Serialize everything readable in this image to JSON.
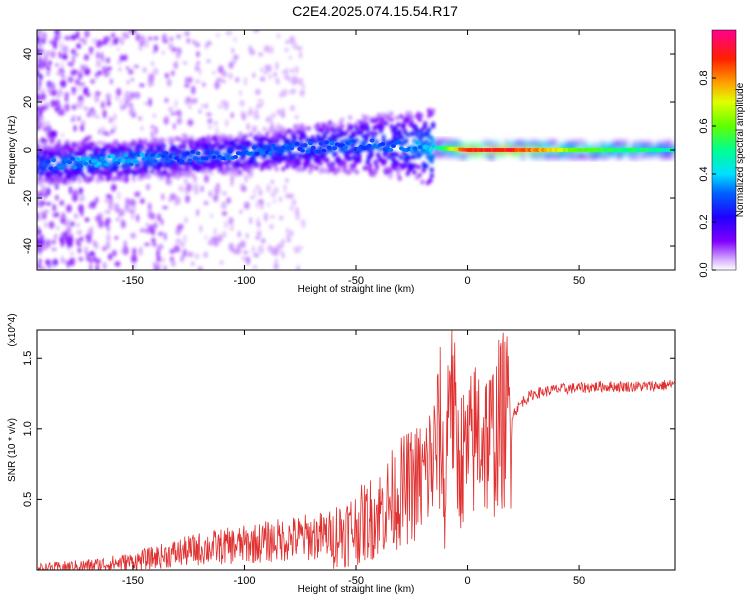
{
  "page_title": "C2E4.2025.074.15.54.R17",
  "chart_data": [
    {
      "type": "heatmap",
      "title": "C2E4.2025.074.15.54.R17",
      "xlabel": "Height of straight line (km)",
      "ylabel": "Frequency (Hz)",
      "xlim": [
        -193,
        93
      ],
      "ylim": [
        -50,
        50
      ],
      "xticks": [
        "-150",
        "-100",
        "-50",
        "0",
        "50"
      ],
      "xtick_values": [
        -150,
        -100,
        -50,
        0,
        50
      ],
      "yticks": [
        "-40",
        "-20",
        "0",
        "20",
        "40"
      ],
      "ytick_values": [
        -40,
        -20,
        0,
        20,
        40
      ],
      "colorbar": {
        "label": "Normalized spectral amplitude",
        "range": [
          0,
          1
        ],
        "ticks": [
          "0.0",
          "0.2",
          "0.4",
          "0.6",
          "0.8"
        ],
        "tick_values": [
          0.0,
          0.2,
          0.4,
          0.6,
          0.8
        ],
        "colors": [
          "#ffffff",
          "#c080ff",
          "#6000ff",
          "#0000ff",
          "#00c8ff",
          "#00ff80",
          "#80ff00",
          "#ffff00",
          "#ff8000",
          "#ff0000",
          "#ff00a0"
        ]
      },
      "ridge": {
        "x": [
          -190,
          -170,
          -150,
          -130,
          -110,
          -90,
          -70,
          -50,
          -30,
          -15,
          0,
          20,
          50,
          93
        ],
        "frequency": [
          -6,
          -5,
          -4,
          -3,
          -2,
          0,
          1,
          2,
          2,
          1,
          0,
          0,
          0,
          0
        ],
        "amplitude": [
          0.3,
          0.35,
          0.35,
          0.3,
          0.3,
          0.3,
          0.3,
          0.3,
          0.3,
          0.4,
          0.9,
          0.9,
          0.6,
          0.45
        ]
      }
    },
    {
      "type": "line",
      "title": "",
      "xlabel": "Height of straight line (km)",
      "ylabel": "SNR (10 * v/v)",
      "y_multiplier": "(x10^4)",
      "xlim": [
        -193,
        93
      ],
      "ylim": [
        0,
        1.7
      ],
      "xticks": [
        "-150",
        "-100",
        "-50",
        "0",
        "50"
      ],
      "xtick_values": [
        -150,
        -100,
        -50,
        0,
        50
      ],
      "yticks": [
        "0.5",
        "1.0",
        "1.5"
      ],
      "ytick_values": [
        0.5,
        1.0,
        1.5
      ],
      "series": [
        {
          "color": "#e03030",
          "x": [
            -193,
            -170,
            -150,
            -130,
            -120,
            -100,
            -80,
            -60,
            -50,
            -40,
            -30,
            -20,
            -15,
            -12,
            -10,
            -8,
            -5,
            0,
            5,
            10,
            15,
            20,
            25,
            30,
            40,
            50,
            60,
            70,
            80,
            90,
            93
          ],
          "values": [
            0.01,
            0.03,
            0.06,
            0.12,
            0.15,
            0.18,
            0.22,
            0.25,
            0.3,
            0.4,
            0.55,
            0.65,
            0.8,
            1.0,
            0.4,
            1.65,
            0.8,
            0.8,
            1.0,
            0.9,
            1.05,
            1.1,
            1.2,
            1.25,
            1.28,
            1.29,
            1.3,
            1.3,
            1.3,
            1.31,
            1.32
          ]
        }
      ]
    }
  ]
}
